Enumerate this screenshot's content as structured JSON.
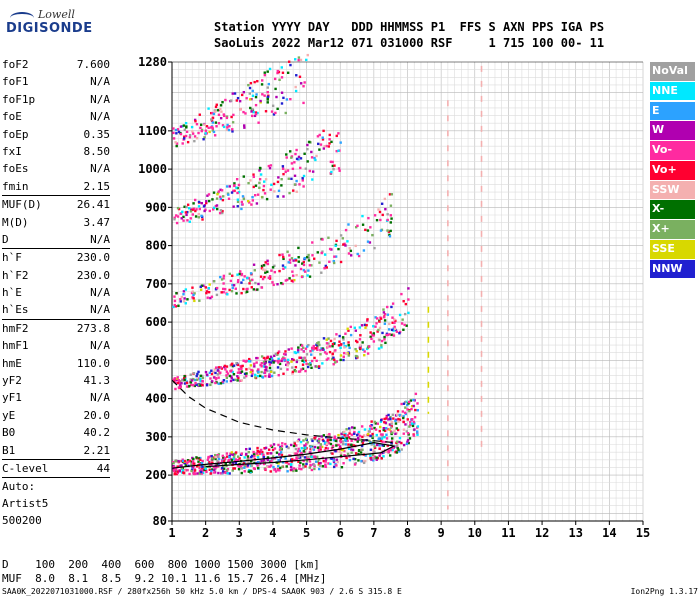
{
  "logo": {
    "line1": "Lowell",
    "line2": "DIGISONDE"
  },
  "header": {
    "line1": "Station YYYY DAY   DDD HHMMSS P1  FFS S AXN PPS IGA PS",
    "line2": "SaoLuis 2022 Mar12 071 031000 RSF     1 715 100 00- 11"
  },
  "params": [
    {
      "name": "foF2",
      "value": "7.600"
    },
    {
      "name": "foF1",
      "value": "N/A"
    },
    {
      "name": "foF1p",
      "value": "N/A"
    },
    {
      "name": "foE",
      "value": "N/A"
    },
    {
      "name": "foEp",
      "value": "0.35"
    },
    {
      "name": "fxI",
      "value": "8.50"
    },
    {
      "name": "foEs",
      "value": "N/A"
    },
    {
      "name": "fmin",
      "value": "2.15"
    },
    {
      "sep": true
    },
    {
      "name": "MUF(D)",
      "value": "26.41"
    },
    {
      "name": "M(D)",
      "value": "3.47"
    },
    {
      "name": "D",
      "value": "N/A"
    },
    {
      "sep": true
    },
    {
      "name": "h`F",
      "value": "230.0"
    },
    {
      "name": "h`F2",
      "value": "230.0"
    },
    {
      "name": "h`E",
      "value": "N/A"
    },
    {
      "name": "h`Es",
      "value": "N/A"
    },
    {
      "sep": true
    },
    {
      "name": "hmF2",
      "value": "273.8"
    },
    {
      "name": "hmF1",
      "value": "N/A"
    },
    {
      "name": "hmE",
      "value": "110.0"
    },
    {
      "name": "yF2",
      "value": "41.3"
    },
    {
      "name": "yF1",
      "value": "N/A"
    },
    {
      "name": "yE",
      "value": "20.0"
    },
    {
      "name": "B0",
      "value": "40.2"
    },
    {
      "name": "B1",
      "value": "2.21"
    },
    {
      "sep": true
    },
    {
      "name": "C-level",
      "value": "44"
    },
    {
      "sep": true
    }
  ],
  "autoscaling": {
    "line1": "Auto:",
    "line2": "Artist5",
    "line3": "500200"
  },
  "legend": [
    {
      "label": "NoVal",
      "color": "#a0a0a0"
    },
    {
      "label": "NNE",
      "color": "#00e8ff"
    },
    {
      "label": "E",
      "color": "#2ca2ff"
    },
    {
      "label": "W",
      "color": "#b000b0"
    },
    {
      "label": "Vo-",
      "color": "#ff2aa0"
    },
    {
      "label": "Vo+",
      "color": "#ff0030"
    },
    {
      "label": "SSW",
      "color": "#f4b0b0"
    },
    {
      "label": "X-",
      "color": "#007000"
    },
    {
      "label": "X+",
      "color": "#7ab060"
    },
    {
      "label": "SSE",
      "color": "#d8d800"
    },
    {
      "label": "NNW",
      "color": "#2020d0"
    }
  ],
  "muf_table": {
    "line1": "D    100  200  400  600  800 1000 1500 3000 [km]",
    "line2": "MUF  8.0  8.1  8.5  9.2 10.1 11.6 15.7 26.4 [MHz]"
  },
  "footer": {
    "left": "SAA0K_2022071031000.RSF / 280fx256h 50 kHz 5.0 km / DPS-4 SAA0K 903 / 2.6 S 315.8 E",
    "right": "Ion2Png 1.3.17"
  },
  "chart_data": {
    "type": "scatter",
    "xlim": [
      1,
      15
    ],
    "ylim": [
      80,
      1280
    ],
    "x_ticks": [
      1,
      2,
      3,
      4,
      5,
      6,
      7,
      8,
      9,
      10,
      11,
      12,
      13,
      14,
      15
    ],
    "y_ticks": [
      80,
      200,
      300,
      400,
      500,
      600,
      700,
      800,
      900,
      1000,
      1100,
      1280
    ],
    "grid": true,
    "series": [
      {
        "role": "F2 trace (1 hop)",
        "x": [
          1.0,
          2.0,
          3.0,
          4.0,
          5.0,
          6.0,
          7.0,
          7.6,
          8.0,
          8.3
        ],
        "y": [
          222,
          230,
          238,
          248,
          258,
          272,
          292,
          315,
          345,
          370
        ]
      },
      {
        "role": "F2 trace (2 hop)",
        "x": [
          1.0,
          2.0,
          3.0,
          4.0,
          5.0,
          6.0,
          7.0,
          7.6,
          8.0
        ],
        "y": [
          442,
          458,
          475,
          492,
          512,
          538,
          572,
          610,
          650
        ]
      },
      {
        "role": "F2 trace (3 hop)",
        "x": [
          1.0,
          2.0,
          3.0,
          4.0,
          5.0,
          6.0,
          7.0,
          7.5
        ],
        "y": [
          660,
          684,
          708,
          735,
          765,
          800,
          845,
          880
        ]
      },
      {
        "role": "F2 trace (4 hop)",
        "x": [
          1.0,
          2.0,
          3.0,
          4.0,
          5.0,
          6.0
        ],
        "y": [
          875,
          905,
          940,
          975,
          1015,
          1060
        ]
      },
      {
        "role": "F2 trace (5 hop)",
        "x": [
          1.0,
          2.0,
          3.0,
          4.0,
          5.0
        ],
        "y": [
          1085,
          1120,
          1160,
          1205,
          1255
        ]
      }
    ],
    "profile_solid": {
      "x": [
        1.0,
        2.0,
        3.0,
        4.0,
        5.0,
        6.0,
        7.0,
        7.6,
        7.2,
        6.0,
        5.0,
        4.0,
        3.0,
        2.0
      ],
      "y": [
        218,
        228,
        236,
        245,
        255,
        268,
        285,
        276,
        258,
        248,
        240,
        233,
        228,
        222
      ]
    },
    "profile_dashed": {
      "x": [
        1.0,
        1.5,
        2.0,
        3.0,
        4.0,
        5.0,
        6.0,
        7.0,
        7.6
      ],
      "y": [
        448,
        405,
        375,
        338,
        318,
        305,
        297,
        290,
        285
      ]
    },
    "vertical_markers": [
      {
        "x": 9.2,
        "color": "#f4b0b0",
        "y": [
          110,
          1180
        ]
      },
      {
        "x": 10.2,
        "color": "#f4b0b0",
        "y": [
          250,
          1270
        ]
      },
      {
        "x": 8.62,
        "color": "#d8d800",
        "y": [
          360,
          640
        ]
      }
    ]
  }
}
